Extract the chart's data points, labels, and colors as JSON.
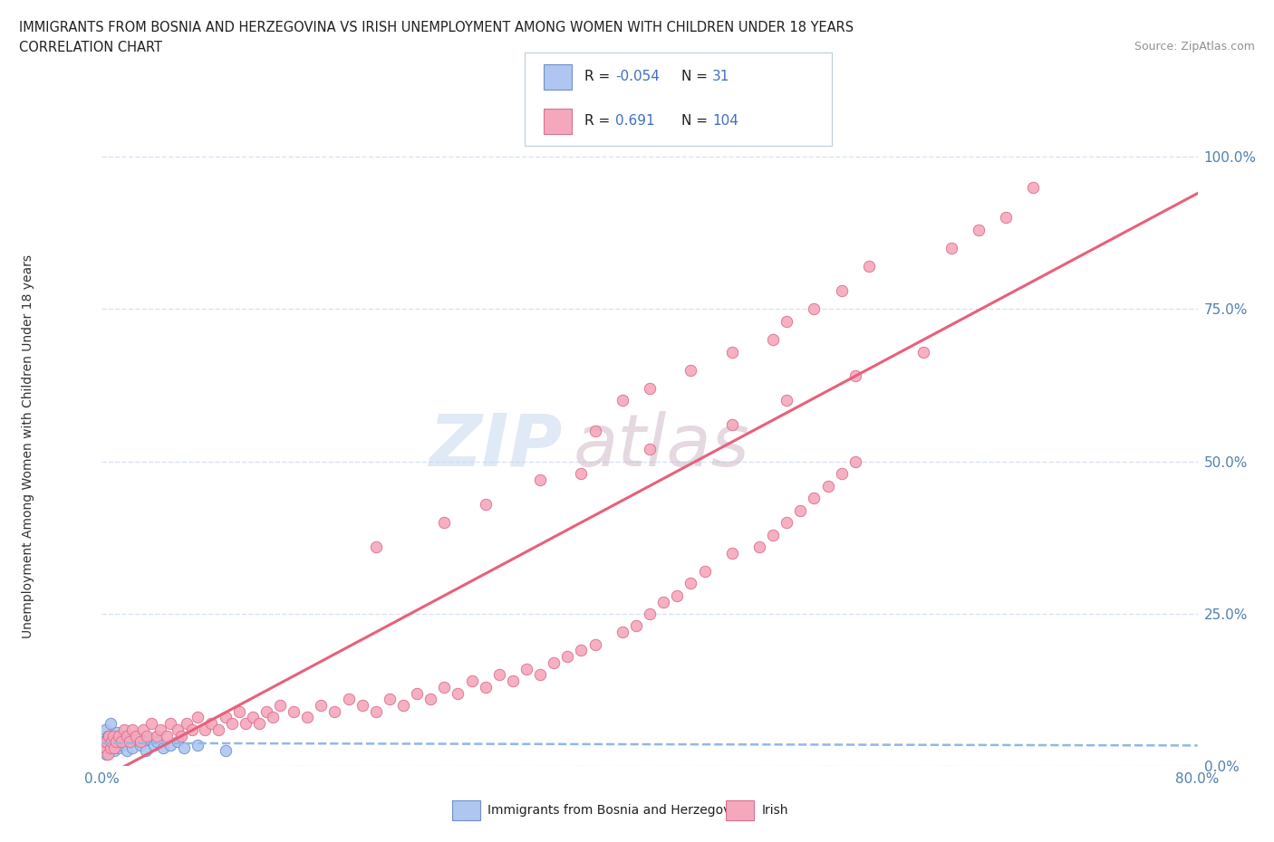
{
  "title": "IMMIGRANTS FROM BOSNIA AND HERZEGOVINA VS IRISH UNEMPLOYMENT AMONG WOMEN WITH CHILDREN UNDER 18 YEARS",
  "subtitle": "CORRELATION CHART",
  "source": "Source: ZipAtlas.com",
  "ylabel": "Unemployment Among Women with Children Under 18 years",
  "xlim": [
    0.0,
    0.8
  ],
  "ylim": [
    0.0,
    1.05
  ],
  "yticks": [
    0.0,
    0.25,
    0.5,
    0.75,
    1.0
  ],
  "ytick_labels": [
    "0.0%",
    "25.0%",
    "50.0%",
    "75.0%",
    "100.0%"
  ],
  "xticks": [
    0.0,
    0.2,
    0.4,
    0.6,
    0.8
  ],
  "xtick_labels": [
    "0.0%",
    "",
    "",
    "",
    "80.0%"
  ],
  "bosnia_color": "#aec6f0",
  "irish_color": "#f5a8bc",
  "bosnia_edge": "#7090c8",
  "irish_edge": "#d87090",
  "trend_bosnia_color": "#90b8e8",
  "trend_irish_color": "#e8607a",
  "trend_bosnia_intercept": 0.038,
  "trend_bosnia_slope": -0.005,
  "trend_irish_intercept": -0.02,
  "trend_irish_slope": 1.2,
  "watermark_zip": "ZIP",
  "watermark_atlas": "atlas",
  "watermark_color_zip": "#c8d8f0",
  "watermark_color_atlas": "#d0b8c8",
  "background_color": "#ffffff",
  "grid_color": "#d8e4f0",
  "bosnia_x": [
    0.001,
    0.002,
    0.003,
    0.004,
    0.005,
    0.006,
    0.007,
    0.008,
    0.009,
    0.01,
    0.011,
    0.012,
    0.013,
    0.015,
    0.016,
    0.018,
    0.02,
    0.022,
    0.025,
    0.028,
    0.03,
    0.032,
    0.035,
    0.038,
    0.04,
    0.045,
    0.05,
    0.055,
    0.06,
    0.07,
    0.09
  ],
  "bosnia_y": [
    0.04,
    0.06,
    0.02,
    0.05,
    0.03,
    0.07,
    0.04,
    0.035,
    0.025,
    0.045,
    0.055,
    0.03,
    0.05,
    0.035,
    0.04,
    0.025,
    0.045,
    0.03,
    0.05,
    0.035,
    0.04,
    0.025,
    0.045,
    0.035,
    0.04,
    0.03,
    0.035,
    0.04,
    0.03,
    0.035,
    0.025
  ],
  "irish_x": [
    0.002,
    0.003,
    0.004,
    0.005,
    0.006,
    0.007,
    0.008,
    0.009,
    0.01,
    0.012,
    0.014,
    0.016,
    0.018,
    0.02,
    0.022,
    0.025,
    0.028,
    0.03,
    0.033,
    0.036,
    0.04,
    0.043,
    0.047,
    0.05,
    0.055,
    0.058,
    0.062,
    0.066,
    0.07,
    0.075,
    0.08,
    0.085,
    0.09,
    0.095,
    0.1,
    0.105,
    0.11,
    0.115,
    0.12,
    0.125,
    0.13,
    0.14,
    0.15,
    0.16,
    0.17,
    0.18,
    0.19,
    0.2,
    0.21,
    0.22,
    0.23,
    0.24,
    0.25,
    0.26,
    0.27,
    0.28,
    0.29,
    0.3,
    0.31,
    0.32,
    0.33,
    0.34,
    0.35,
    0.36,
    0.38,
    0.39,
    0.4,
    0.41,
    0.42,
    0.43,
    0.44,
    0.46,
    0.48,
    0.49,
    0.5,
    0.51,
    0.52,
    0.53,
    0.54,
    0.55,
    0.36,
    0.38,
    0.4,
    0.43,
    0.46,
    0.49,
    0.5,
    0.52,
    0.54,
    0.56,
    0.2,
    0.25,
    0.28,
    0.32,
    0.35,
    0.4,
    0.46,
    0.5,
    0.55,
    0.6,
    0.62,
    0.64,
    0.66,
    0.68
  ],
  "irish_y": [
    0.03,
    0.04,
    0.02,
    0.05,
    0.03,
    0.04,
    0.05,
    0.03,
    0.04,
    0.05,
    0.04,
    0.06,
    0.05,
    0.04,
    0.06,
    0.05,
    0.04,
    0.06,
    0.05,
    0.07,
    0.05,
    0.06,
    0.05,
    0.07,
    0.06,
    0.05,
    0.07,
    0.06,
    0.08,
    0.06,
    0.07,
    0.06,
    0.08,
    0.07,
    0.09,
    0.07,
    0.08,
    0.07,
    0.09,
    0.08,
    0.1,
    0.09,
    0.08,
    0.1,
    0.09,
    0.11,
    0.1,
    0.09,
    0.11,
    0.1,
    0.12,
    0.11,
    0.13,
    0.12,
    0.14,
    0.13,
    0.15,
    0.14,
    0.16,
    0.15,
    0.17,
    0.18,
    0.19,
    0.2,
    0.22,
    0.23,
    0.25,
    0.27,
    0.28,
    0.3,
    0.32,
    0.35,
    0.36,
    0.38,
    0.4,
    0.42,
    0.44,
    0.46,
    0.48,
    0.5,
    0.55,
    0.6,
    0.62,
    0.65,
    0.68,
    0.7,
    0.73,
    0.75,
    0.78,
    0.82,
    0.36,
    0.4,
    0.43,
    0.47,
    0.48,
    0.52,
    0.56,
    0.6,
    0.64,
    0.68,
    0.85,
    0.88,
    0.9,
    0.95
  ]
}
